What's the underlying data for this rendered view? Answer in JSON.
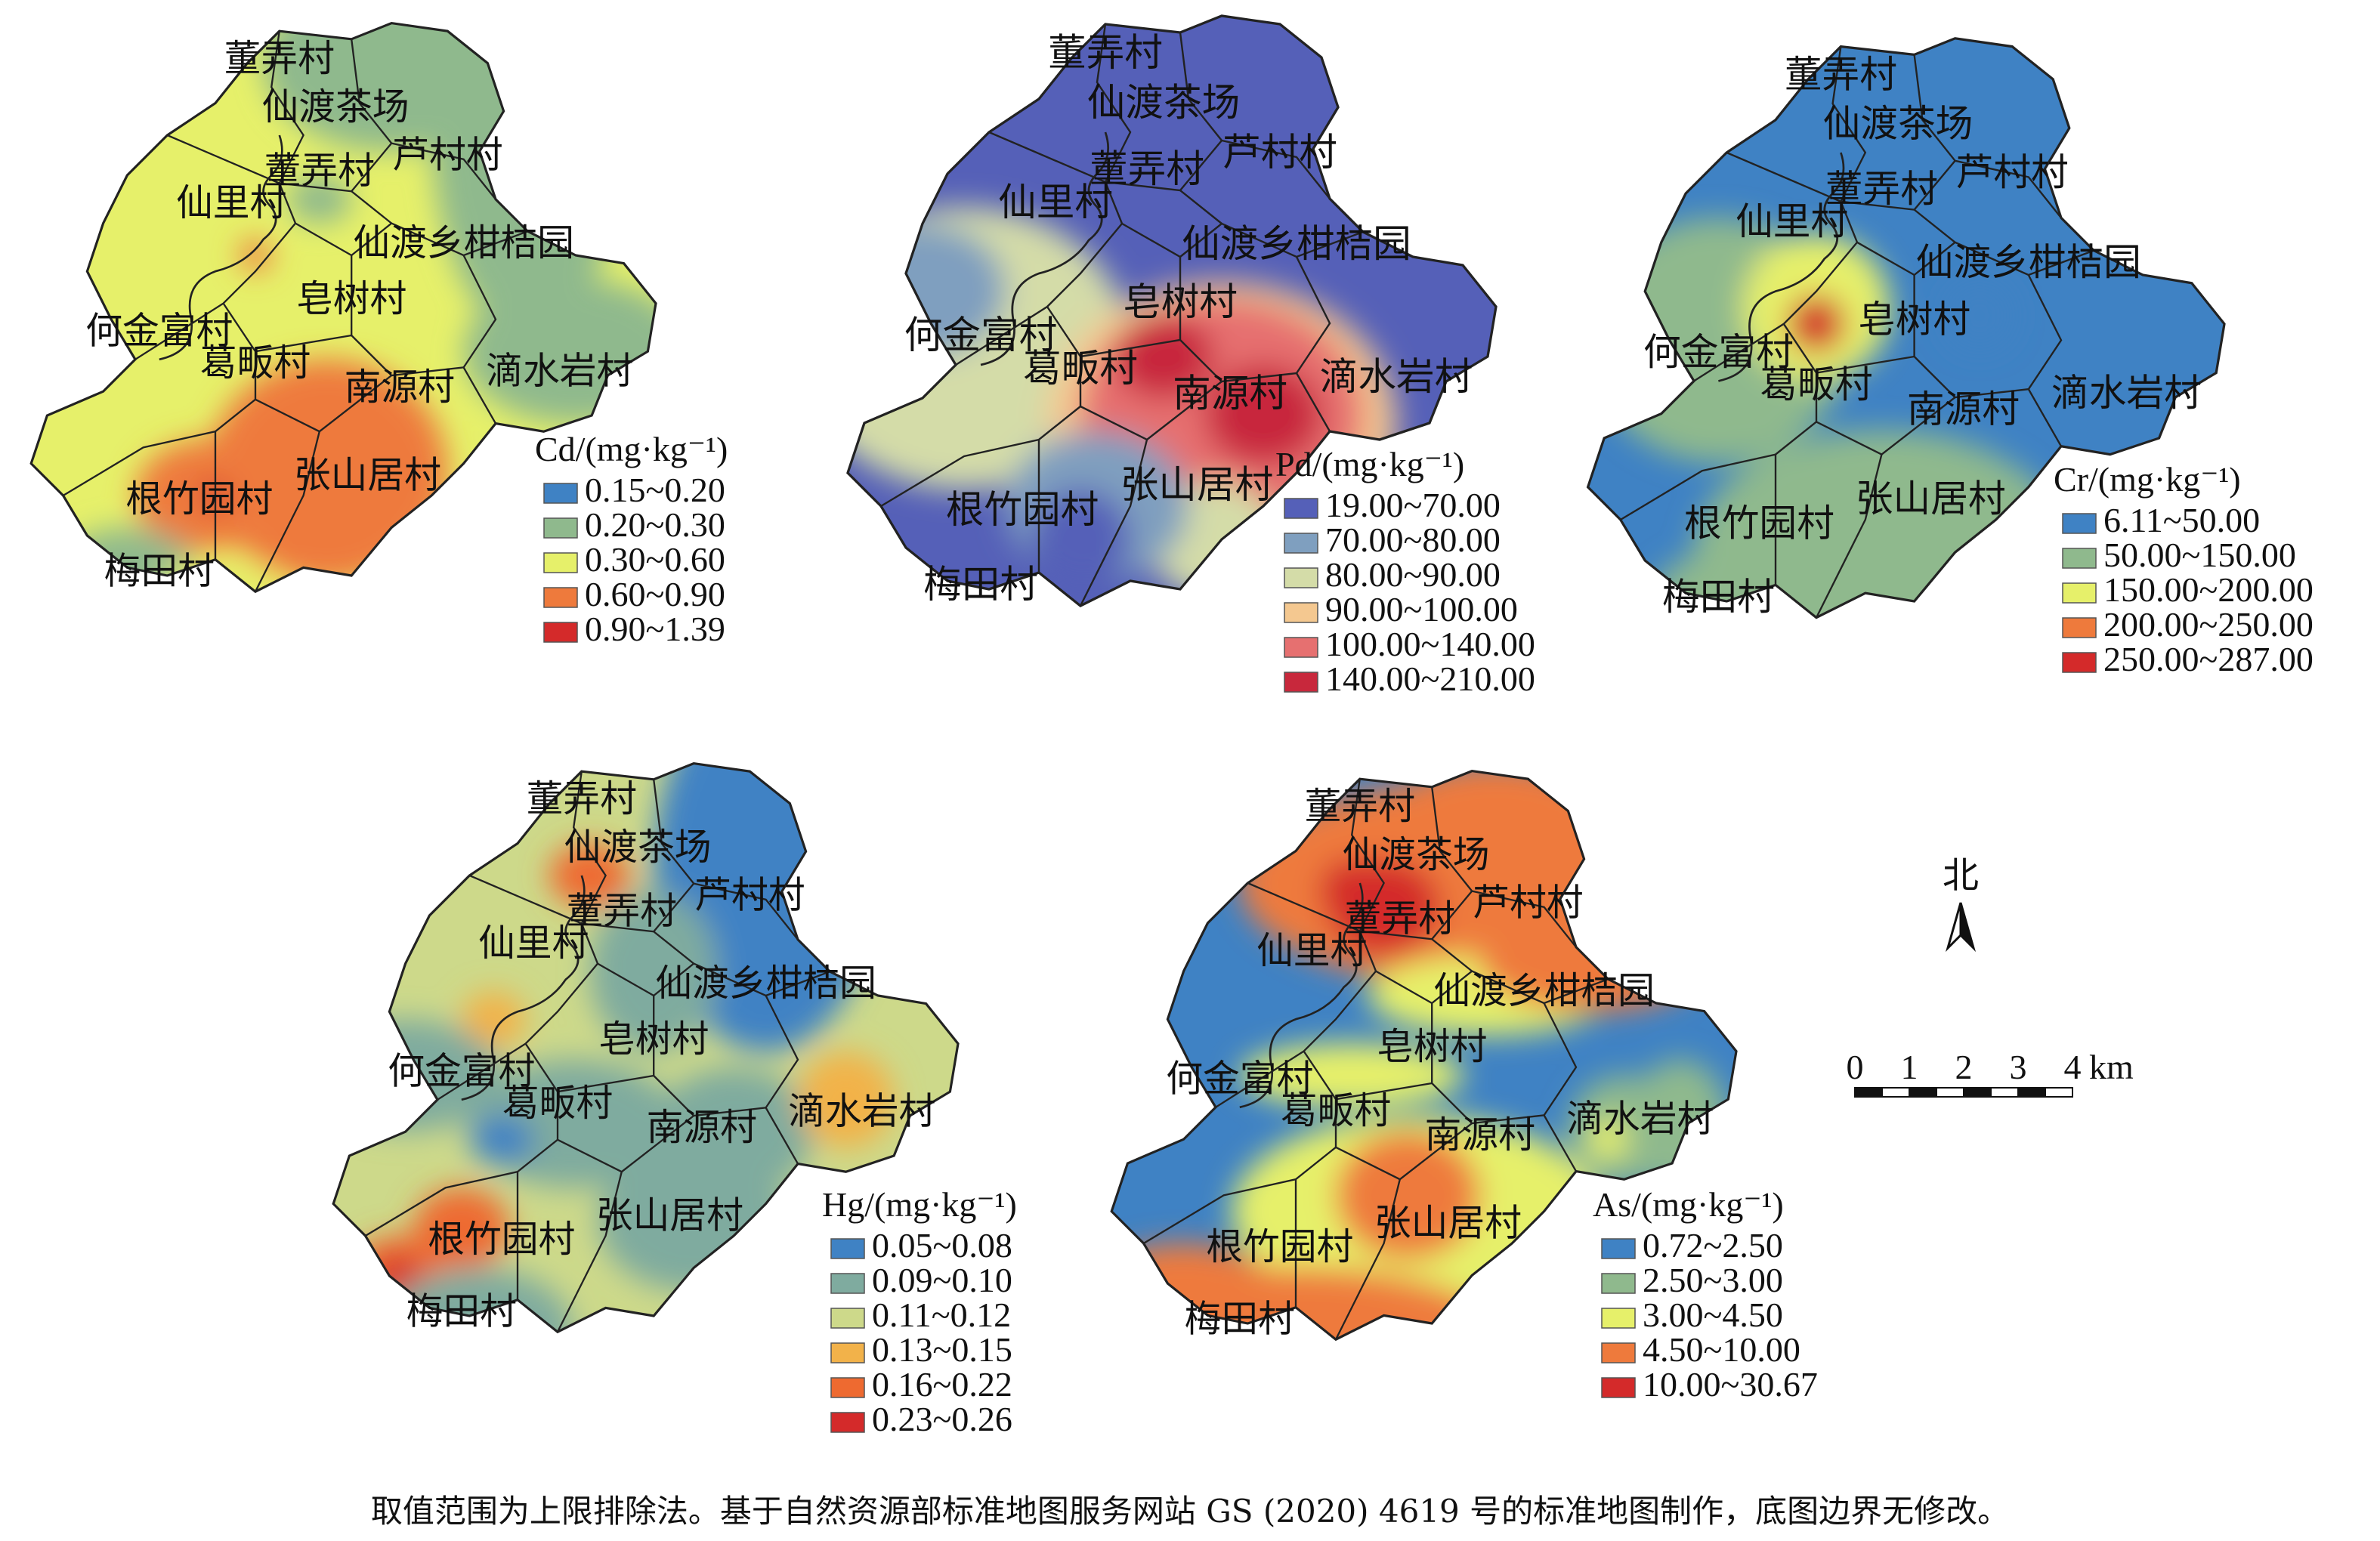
{
  "maps": [
    {
      "element": "Cd",
      "legend_title": "Cd/(mg·kg⁻¹)",
      "classes": [
        {
          "range": "0.15~0.20",
          "color": "#3f82c4"
        },
        {
          "range": "0.20~0.30",
          "color": "#8fb98d"
        },
        {
          "range": "0.30~0.60",
          "color": "#e6f06a"
        },
        {
          "range": "0.60~0.90",
          "color": "#ee7a3c"
        },
        {
          "range": "0.90~1.39",
          "color": "#d42a2a"
        }
      ],
      "villages": [
        "董弄村",
        "仙渡茶场",
        "芦村村",
        "董弄村",
        "仙里村",
        "仙渡乡柑桔园",
        "皂树村",
        "何金富村",
        "葛畈村",
        "南源村",
        "滴水岩村",
        "张山居村",
        "根竹园村",
        "梅田村"
      ]
    },
    {
      "element": "Pd",
      "legend_title": "Pd/(mg·kg⁻¹)",
      "classes": [
        {
          "range": "19.00~70.00",
          "color": "#5560b8"
        },
        {
          "range": "70.00~80.00",
          "color": "#7f9fbf"
        },
        {
          "range": "80.00~90.00",
          "color": "#d4dca8"
        },
        {
          "range": "90.00~100.00",
          "color": "#f4c890"
        },
        {
          "range": "100.00~140.00",
          "color": "#e67070"
        },
        {
          "range": "140.00~210.00",
          "color": "#c8283c"
        }
      ],
      "villages": [
        "董弄村",
        "仙渡茶场",
        "芦村村",
        "董弄村",
        "仙里村",
        "仙渡乡柑桔园",
        "皂树村",
        "何金富村",
        "葛畈村",
        "南源村",
        "滴水岩村",
        "张山居村",
        "根竹园村",
        "梅田村"
      ]
    },
    {
      "element": "Cr",
      "legend_title": "Cr/(mg·kg⁻¹)",
      "classes": [
        {
          "range": "6.11~50.00",
          "color": "#3f82c4"
        },
        {
          "range": "50.00~150.00",
          "color": "#8fb98d"
        },
        {
          "range": "150.00~200.00",
          "color": "#e6f06a"
        },
        {
          "range": "200.00~250.00",
          "color": "#ee7a3c"
        },
        {
          "range": "250.00~287.00",
          "color": "#d42a2a"
        }
      ],
      "villages": [
        "董弄村",
        "仙渡茶场",
        "芦村村",
        "董弄村",
        "仙里村",
        "仙渡乡柑桔园",
        "皂树村",
        "何金富村",
        "葛畈村",
        "南源村",
        "滴水岩村",
        "张山居村",
        "根竹园村",
        "梅田村"
      ]
    },
    {
      "element": "Hg",
      "legend_title": "Hg/(mg·kg⁻¹)",
      "classes": [
        {
          "range": "0.05~0.08",
          "color": "#3f82c4"
        },
        {
          "range": "0.09~0.10",
          "color": "#7fab9f"
        },
        {
          "range": "0.11~0.12",
          "color": "#cdd98a"
        },
        {
          "range": "0.13~0.15",
          "color": "#f2b24a"
        },
        {
          "range": "0.16~0.22",
          "color": "#ee6a30"
        },
        {
          "range": "0.23~0.26",
          "color": "#d42a2a"
        }
      ],
      "villages": [
        "董弄村",
        "仙渡茶场",
        "芦村村",
        "董弄村",
        "仙里村",
        "仙渡乡柑桔园",
        "皂树村",
        "何金富村",
        "葛畈村",
        "南源村",
        "滴水岩村",
        "张山居村",
        "根竹园村",
        "梅田村"
      ]
    },
    {
      "element": "As",
      "legend_title": "As/(mg·kg⁻¹)",
      "classes": [
        {
          "range": "0.72~2.50",
          "color": "#3f82c4"
        },
        {
          "range": "2.50~3.00",
          "color": "#8fb98d"
        },
        {
          "range": "3.00~4.50",
          "color": "#e6f06a"
        },
        {
          "range": "4.50~10.00",
          "color": "#ee7a3c"
        },
        {
          "range": "10.00~30.67",
          "color": "#d42a2a"
        }
      ],
      "villages": [
        "董弄村",
        "仙渡茶场",
        "芦村村",
        "董弄村",
        "仙里村",
        "仙渡乡柑桔园",
        "皂树村",
        "何金富村",
        "葛畈村",
        "南源村",
        "滴水岩村",
        "张山居村",
        "根竹园村",
        "梅田村"
      ]
    }
  ],
  "north_label": "北",
  "scale_bar": {
    "ticks": [
      "0",
      "1",
      "2",
      "3",
      "4"
    ],
    "unit": "km"
  },
  "footer": "取值范围为上限排除法。基于自然资源部标准地图服务网站 GS (2020) 4619 号的标准地图制作，底图边界无修改。"
}
